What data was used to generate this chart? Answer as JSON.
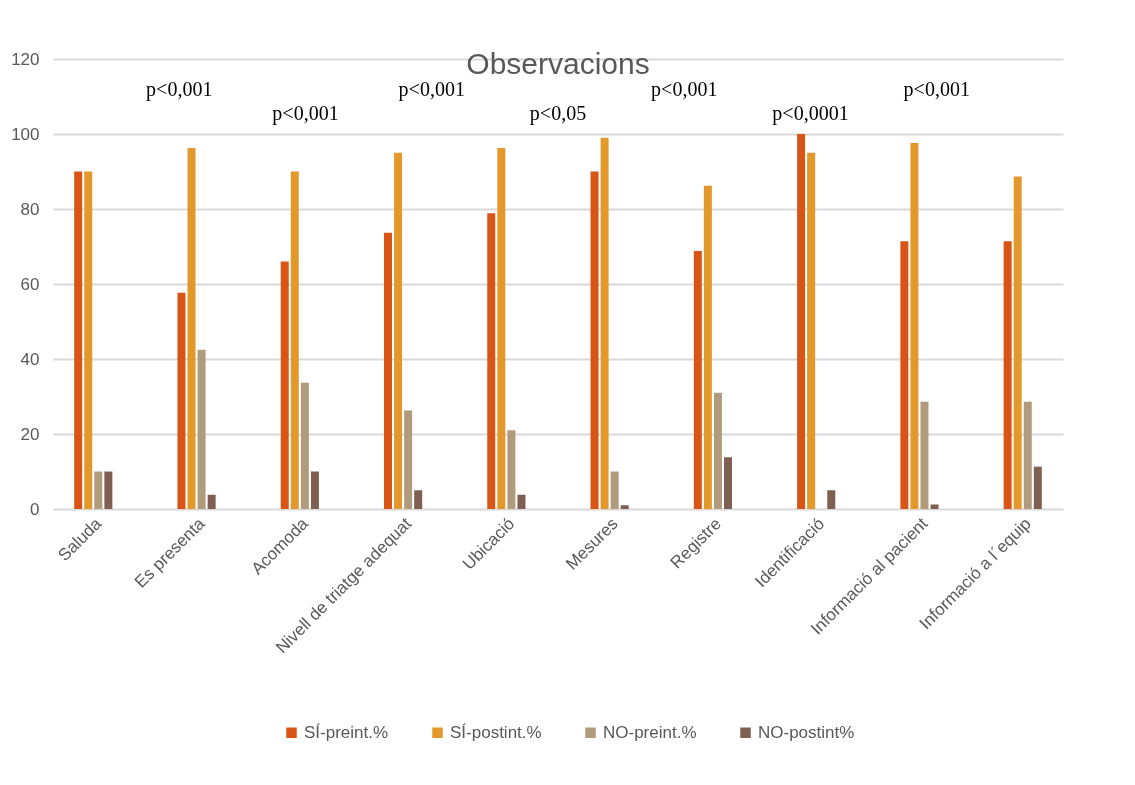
{
  "chart_data": {
    "type": "bar",
    "title": "Observacions",
    "categories": [
      "Saluda",
      "Es presenta",
      "Acomoda",
      "Nivell de triatge adequat",
      "Ubicació",
      "Mesures",
      "Registre",
      "Identificació",
      "Informació al pacient",
      "Informació a l´equip"
    ],
    "series": [
      {
        "name": "SÍ-preint.%",
        "color": "#d95516",
        "values": [
          90,
          57.7,
          66,
          73.7,
          78.9,
          90,
          68.8,
          100,
          71.4,
          71.4
        ]
      },
      {
        "name": "SÍ-postint.%",
        "color": "#e2982a",
        "values": [
          90,
          96.3,
          90,
          95,
          96.3,
          99,
          86.2,
          95,
          97.6,
          88.7
        ]
      },
      {
        "name": "NO-preint.%",
        "color": "#b09b7c",
        "values": [
          10,
          42.5,
          33.7,
          26.3,
          21,
          10,
          31,
          0,
          28.6,
          28.6
        ]
      },
      {
        "name": "NO-postint%",
        "color": "#7f5f52",
        "values": [
          10,
          3.8,
          10,
          5,
          3.8,
          1,
          13.8,
          5,
          1.2,
          11.3
        ]
      }
    ],
    "ylim": [
      0,
      120
    ],
    "yticks": [
      0,
      20,
      40,
      60,
      80,
      100,
      120
    ],
    "grid": "y",
    "legend": "bottom",
    "annotations": [
      "p<0,001",
      "p<0,001",
      "p<0,001",
      "p<0,05",
      "p<0,001",
      "p<0,0001",
      "p<0,001"
    ]
  }
}
